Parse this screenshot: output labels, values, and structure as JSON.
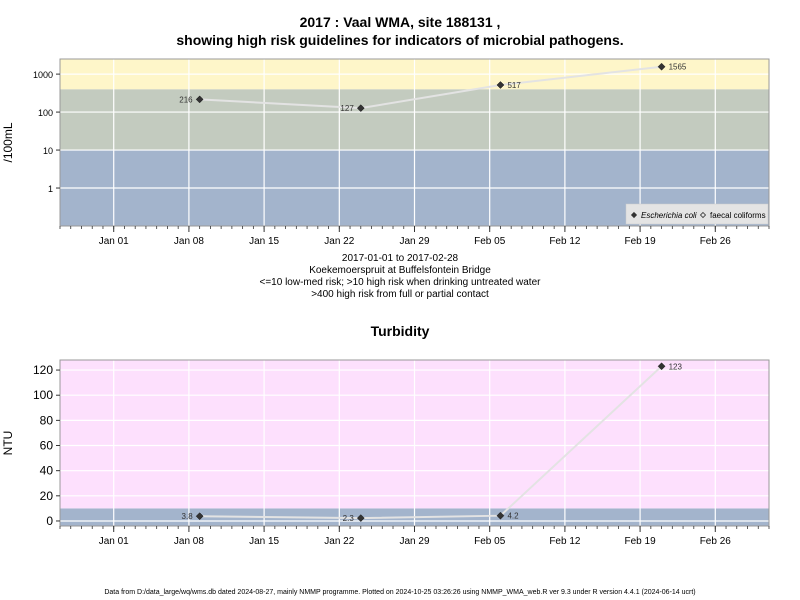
{
  "chart_data": [
    {
      "type": "line",
      "title_line1": "2017 : Vaal WMA, site 188131 ,",
      "title_line2": "showing high risk guidelines for indicators of microbial pathogens.",
      "ylabel": "/100mL",
      "yscale": "log",
      "yticks": [
        {
          "value": 1,
          "label": "1"
        },
        {
          "value": 10,
          "label": "10"
        },
        {
          "value": 100,
          "label": "100"
        },
        {
          "value": 1000,
          "label": "1000"
        }
      ],
      "ylim": [
        0.1,
        2500
      ],
      "xlim": [
        "2016-12-27",
        "2017-03-03"
      ],
      "xticks": [
        {
          "date": "2017-01-01",
          "label": "Jan 01"
        },
        {
          "date": "2017-01-08",
          "label": "Jan 08"
        },
        {
          "date": "2017-01-15",
          "label": "Jan 15"
        },
        {
          "date": "2017-01-22",
          "label": "Jan 22"
        },
        {
          "date": "2017-01-29",
          "label": "Jan 29"
        },
        {
          "date": "2017-02-05",
          "label": "Feb 05"
        },
        {
          "date": "2017-02-12",
          "label": "Feb 12"
        },
        {
          "date": "2017-02-19",
          "label": "Feb 19"
        },
        {
          "date": "2017-02-26",
          "label": "Feb 26"
        }
      ],
      "bands": [
        {
          "from": 0.1,
          "to": 10,
          "color": "#a3b4cc"
        },
        {
          "from": 10,
          "to": 400,
          "color": "#c3cbbf"
        },
        {
          "from": 400,
          "to": 2500,
          "color": "#fef6c9"
        }
      ],
      "series": [
        {
          "name": "Escherichia coli",
          "points": [
            {
              "x": "2017-01-09",
              "y": 216,
              "label": "216"
            },
            {
              "x": "2017-01-24",
              "y": 127,
              "label": "127"
            },
            {
              "x": "2017-02-06",
              "y": 517,
              "label": "517"
            },
            {
              "x": "2017-02-21",
              "y": 1565,
              "label": "1565"
            }
          ]
        }
      ],
      "legend": [
        {
          "name": "Escherichia coli",
          "marker": "filled-diamond"
        },
        {
          "name": "faecal coliforms",
          "marker": "open-diamond"
        }
      ],
      "legend_position": "bottom-right",
      "grid": true,
      "notes": [
        "2017-01-01 to 2017-02-28",
        "Koekemoerspruit at Buffelsfontein Bridge",
        "<=10 low-med risk; >10 high risk when drinking untreated water",
        ">400 high risk from full or partial contact"
      ]
    },
    {
      "type": "line",
      "title": "Turbidity",
      "ylabel": "NTU",
      "yscale": "linear",
      "yticks": [
        {
          "value": 0,
          "label": "0"
        },
        {
          "value": 20,
          "label": "20"
        },
        {
          "value": 40,
          "label": "40"
        },
        {
          "value": 60,
          "label": "60"
        },
        {
          "value": 80,
          "label": "80"
        },
        {
          "value": 100,
          "label": "100"
        },
        {
          "value": 120,
          "label": "120"
        }
      ],
      "ylim": [
        -4,
        128
      ],
      "xlim": [
        "2016-12-27",
        "2017-03-03"
      ],
      "xticks": [
        {
          "date": "2017-01-01",
          "label": "Jan 01"
        },
        {
          "date": "2017-01-08",
          "label": "Jan 08"
        },
        {
          "date": "2017-01-15",
          "label": "Jan 15"
        },
        {
          "date": "2017-01-22",
          "label": "Jan 22"
        },
        {
          "date": "2017-01-29",
          "label": "Jan 29"
        },
        {
          "date": "2017-02-05",
          "label": "Feb 05"
        },
        {
          "date": "2017-02-12",
          "label": "Feb 12"
        },
        {
          "date": "2017-02-19",
          "label": "Feb 19"
        },
        {
          "date": "2017-02-26",
          "label": "Feb 26"
        }
      ],
      "bands": [
        {
          "from": -4,
          "to": 10,
          "color": "#a3b4cc"
        },
        {
          "from": 10,
          "to": 128,
          "color": "#fde0fd"
        }
      ],
      "series": [
        {
          "points": [
            {
              "x": "2017-01-09",
              "y": 3.8,
              "label": "3.8"
            },
            {
              "x": "2017-01-24",
              "y": 2.3,
              "label": "2.3"
            },
            {
              "x": "2017-02-06",
              "y": 4.2,
              "label": "4.2"
            },
            {
              "x": "2017-02-21",
              "y": 123,
              "label": "123"
            }
          ]
        }
      ],
      "grid": true
    }
  ],
  "footer": "Data from D:/data_large/wq/wms.db dated 2024-08-27, mainly NMMP programme. Plotted on 2024-10-25 03:26:26 using NMMP_WMA_web.R ver 9.3 under R version 4.4.1 (2024-06-14 ucrt)"
}
